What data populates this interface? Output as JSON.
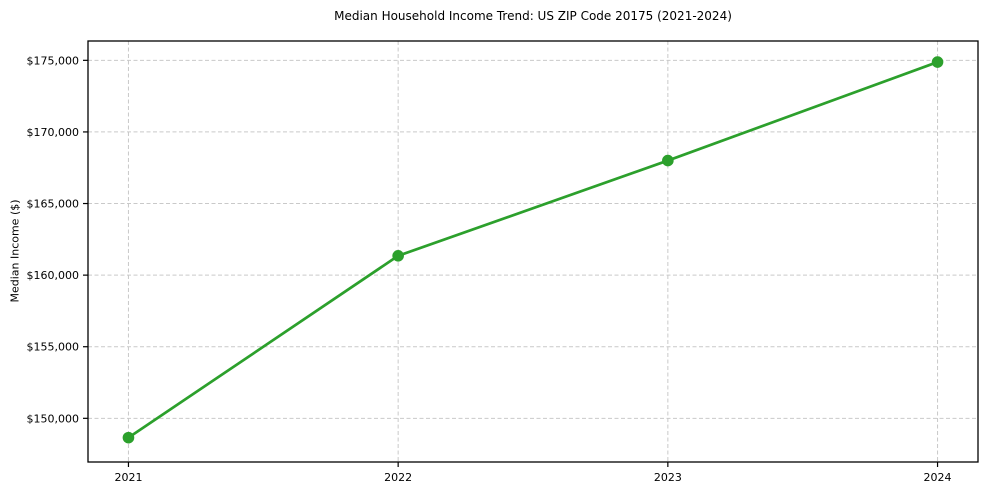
{
  "chart_data": {
    "type": "line",
    "title": "Median Household Income Trend: US ZIP Code 20175 (2021-2024)",
    "xlabel": "",
    "ylabel": "Median Income ($)",
    "series_name": "Median Household Income",
    "categories": [
      "2021",
      "2022",
      "2023",
      "2024"
    ],
    "x": [
      2021,
      2022,
      2023,
      2024
    ],
    "values": [
      148650,
      161350,
      168000,
      174880
    ],
    "xlim": [
      2020.85,
      2024.15
    ],
    "ylim": [
      146950,
      176350
    ],
    "yticks": [
      150000,
      155000,
      160000,
      165000,
      170000,
      175000
    ],
    "ytick_labels": [
      "$150,000",
      "$155,000",
      "$160,000",
      "$165,000",
      "$170,000",
      "$175,000"
    ],
    "grid": true,
    "grid_style": "dashed",
    "legend_position": "none",
    "colors": {
      "line": "#2ca02c",
      "marker": "#2ca02c",
      "grid": "#c9c9c9",
      "spine": "#000000",
      "background": "#ffffff",
      "text": "#000000"
    }
  }
}
